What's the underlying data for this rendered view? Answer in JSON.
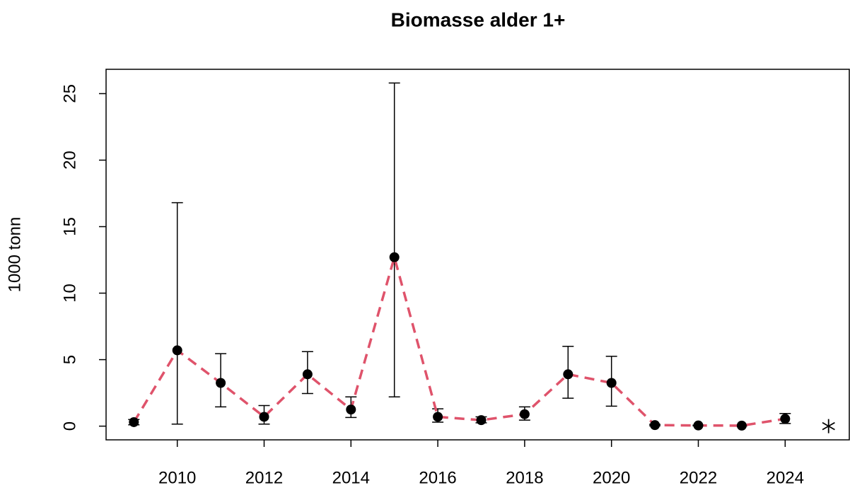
{
  "chart_data": {
    "type": "line",
    "title": "Biomasse alder 1+",
    "y_label": "1000 tonn",
    "x": [
      2009,
      2010,
      2011,
      2012,
      2013,
      2014,
      2015,
      2016,
      2017,
      2018,
      2019,
      2020,
      2021,
      2022,
      2023,
      2024
    ],
    "values": [
      0.3,
      5.7,
      3.25,
      0.7,
      3.9,
      1.25,
      12.7,
      0.7,
      0.45,
      0.9,
      3.9,
      3.25,
      0.08,
      0.05,
      0.04,
      0.55
    ],
    "error_low": [
      0.1,
      0.15,
      1.45,
      0.15,
      2.45,
      0.65,
      2.2,
      0.3,
      0.25,
      0.45,
      2.1,
      1.5,
      0.03,
      0.02,
      0.02,
      0.2
    ],
    "error_high": [
      0.5,
      16.8,
      5.45,
      1.55,
      5.6,
      2.2,
      25.8,
      1.3,
      0.7,
      1.45,
      6.0,
      5.25,
      0.13,
      0.08,
      0.06,
      0.95
    ],
    "line_color": "#DF536B",
    "point_color": "#000000",
    "extra_points": {
      "x": [
        2025
      ],
      "values": [
        0
      ],
      "marker": "*"
    },
    "xlim": [
      2008.36,
      2025.64
    ],
    "ylim": [
      -1.03,
      26.83
    ],
    "xticks": [
      2010,
      2012,
      2014,
      2016,
      2018,
      2020,
      2022,
      2024
    ],
    "yticks": [
      0,
      5,
      10,
      15,
      20,
      25
    ]
  }
}
